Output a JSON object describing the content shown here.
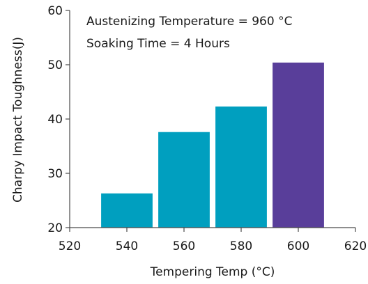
{
  "chart_data": {
    "type": "bar",
    "xlabel": "Tempering Temp (°C)",
    "ylabel": "Charpy Impact Toughness(J)",
    "xlim": [
      520,
      620
    ],
    "ylim": [
      20,
      60
    ],
    "x_ticks": [
      520,
      540,
      560,
      580,
      600,
      620
    ],
    "y_ticks": [
      20,
      30,
      40,
      50,
      60
    ],
    "annotations": [
      "Austenizing Temperature = 960 °C",
      "Soaking Time = 4 Hours"
    ],
    "grid": false,
    "series": [
      {
        "x": [
          540,
          560,
          580,
          600
        ],
        "values": [
          26.3,
          37.6,
          42.3,
          50.4
        ],
        "colors": [
          "#009fbf",
          "#009fbf",
          "#009fbf",
          "#593e9a"
        ]
      }
    ]
  }
}
